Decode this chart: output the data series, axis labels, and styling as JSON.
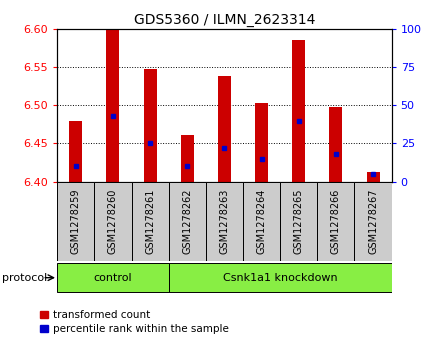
{
  "title": "GDS5360 / ILMN_2623314",
  "samples": [
    "GSM1278259",
    "GSM1278260",
    "GSM1278261",
    "GSM1278262",
    "GSM1278263",
    "GSM1278264",
    "GSM1278265",
    "GSM1278266",
    "GSM1278267"
  ],
  "red_values": [
    6.48,
    6.6,
    6.548,
    6.461,
    6.538,
    6.503,
    6.585,
    6.498,
    6.412
  ],
  "blue_values_pct": [
    10,
    43,
    25,
    10,
    22,
    15,
    40,
    18,
    5
  ],
  "ylim": [
    6.4,
    6.6
  ],
  "y2lim": [
    0,
    100
  ],
  "yticks": [
    6.4,
    6.45,
    6.5,
    6.55,
    6.6
  ],
  "y2ticks": [
    0,
    25,
    50,
    75,
    100
  ],
  "bar_base": 6.4,
  "bar_width": 0.35,
  "red_color": "#cc0000",
  "blue_color": "#0000cc",
  "gray_bg": "#cccccc",
  "green_bg": "#88ee44",
  "control_label": "control",
  "knockdown_label": "Csnk1a1 knockdown",
  "protocol_label": "protocol",
  "legend_red": "transformed count",
  "legend_blue": "percentile rank within the sample",
  "control_samples": [
    0,
    1,
    2
  ],
  "knockdown_samples": [
    3,
    4,
    5,
    6,
    7,
    8
  ],
  "figsize": [
    4.4,
    3.63
  ],
  "dpi": 100
}
